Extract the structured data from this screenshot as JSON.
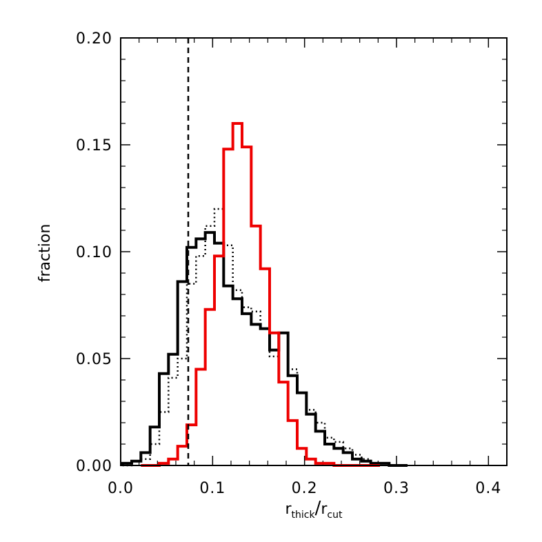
{
  "chart_data": {
    "type": "histogram",
    "title": "",
    "xlabel": {
      "main": "r",
      "sub1": "thick",
      "slash": "/",
      "main2": "r",
      "sub2": "cut"
    },
    "ylabel": "fraction",
    "xlim": [
      0.0,
      0.42
    ],
    "ylim": [
      0.0,
      0.2
    ],
    "xticks": [
      0.0,
      0.1,
      0.2,
      0.3,
      0.4
    ],
    "xtick_labels": [
      "0.0",
      "0.1",
      "0.2",
      "0.3",
      "0.4"
    ],
    "yticks": [
      0.0,
      0.05,
      0.1,
      0.15,
      0.2
    ],
    "ytick_labels": [
      "0.00",
      "0.05",
      "0.10",
      "0.15",
      "0.20"
    ],
    "bin_edges": [
      0.0,
      0.0084,
      0.0168,
      0.0252,
      0.0336,
      0.042,
      0.0504,
      0.0588,
      0.0672,
      0.0756,
      0.084,
      0.0924,
      0.1008,
      0.1092,
      0.1176,
      0.126,
      0.1344,
      0.1428,
      0.1512,
      0.1596,
      0.168,
      0.1764,
      0.1848,
      0.1932,
      0.2016,
      0.21,
      0.2184,
      0.2268,
      0.2352,
      0.2436,
      0.252,
      0.2604,
      0.2688,
      0.2772,
      0.2856,
      0.294,
      0.3024,
      0.3108,
      0.3192,
      0.3276,
      0.336,
      0.3444,
      0.3528,
      0.3612,
      0.3696,
      0.378,
      0.3864,
      0.3948,
      0.4032,
      0.4116,
      0.42
    ],
    "vline": {
      "x": 0.0735,
      "style": "dashed"
    },
    "series": [
      {
        "name": "black solid",
        "color": "#000000",
        "style": "solid",
        "x": [
          0.007,
          0.017,
          0.027,
          0.037,
          0.047,
          0.057,
          0.067,
          0.077,
          0.087,
          0.097,
          0.107,
          0.117,
          0.127,
          0.137,
          0.147,
          0.157,
          0.167,
          0.177,
          0.187,
          0.197,
          0.207,
          0.217,
          0.227,
          0.237,
          0.247,
          0.257,
          0.267,
          0.277,
          0.287,
          0.297,
          0.307
        ],
        "y": [
          0.001,
          0.002,
          0.006,
          0.018,
          0.043,
          0.052,
          0.086,
          0.102,
          0.106,
          0.109,
          0.104,
          0.084,
          0.078,
          0.071,
          0.066,
          0.064,
          0.054,
          0.062,
          0.042,
          0.034,
          0.024,
          0.016,
          0.01,
          0.008,
          0.006,
          0.003,
          0.002,
          0.001,
          0.001,
          0.0,
          0.0
        ],
        "width": 0.01
      },
      {
        "name": "black dotted",
        "color": "#000000",
        "style": "dotted",
        "x": [
          0.007,
          0.017,
          0.027,
          0.037,
          0.047,
          0.057,
          0.067,
          0.077,
          0.087,
          0.097,
          0.107,
          0.117,
          0.127,
          0.137,
          0.147,
          0.157,
          0.167,
          0.177,
          0.187,
          0.197,
          0.207,
          0.217,
          0.227,
          0.237,
          0.247,
          0.257,
          0.267,
          0.277
        ],
        "y": [
          0.0,
          0.002,
          0.003,
          0.01,
          0.025,
          0.041,
          0.05,
          0.085,
          0.098,
          0.112,
          0.12,
          0.103,
          0.082,
          0.074,
          0.072,
          0.064,
          0.051,
          0.062,
          0.045,
          0.034,
          0.026,
          0.02,
          0.013,
          0.011,
          0.008,
          0.005,
          0.003,
          0.0
        ],
        "width": 0.01
      },
      {
        "name": "red solid",
        "color": "#ee0000",
        "style": "solid",
        "x": [
          0.027,
          0.037,
          0.047,
          0.057,
          0.067,
          0.077,
          0.087,
          0.097,
          0.107,
          0.117,
          0.127,
          0.137,
          0.147,
          0.157,
          0.167,
          0.177,
          0.187,
          0.197,
          0.207,
          0.217,
          0.227,
          0.237,
          0.247,
          0.257,
          0.267,
          0.277
        ],
        "y": [
          0.0,
          0.0,
          0.001,
          0.003,
          0.009,
          0.019,
          0.045,
          0.073,
          0.098,
          0.148,
          0.16,
          0.149,
          0.112,
          0.092,
          0.062,
          0.039,
          0.021,
          0.008,
          0.003,
          0.001,
          0.001,
          0.0,
          0.0,
          0.0,
          0.0,
          0.0
        ],
        "width": 0.01
      }
    ]
  }
}
